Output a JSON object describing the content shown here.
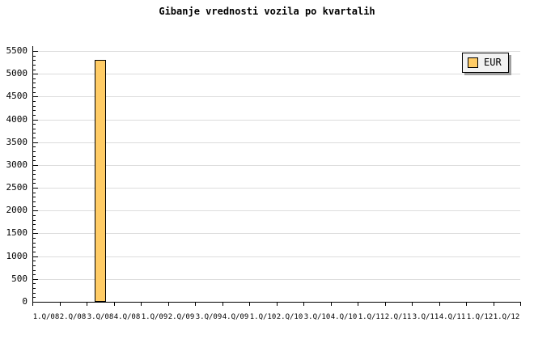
{
  "chart_data": {
    "type": "bar",
    "title": "Gibanje vrednosti vozila po kvartalih",
    "categories": [
      "1.Q/08",
      "2.Q/08",
      "3.Q/08",
      "4.Q/08",
      "1.Q/09",
      "2.Q/09",
      "3.Q/09",
      "4.Q/09",
      "1.Q/10",
      "2.Q/10",
      "3.Q/10",
      "4.Q/10",
      "1.Q/11",
      "2.Q/11",
      "3.Q/11",
      "4.Q/11",
      "1.Q/12",
      "1.Q/12"
    ],
    "series": [
      {
        "name": "EUR",
        "values": [
          null,
          null,
          5300,
          null,
          null,
          null,
          null,
          null,
          null,
          null,
          null,
          null,
          null,
          null,
          null,
          null,
          null,
          null
        ]
      }
    ],
    "xlabel": "",
    "ylabel": "",
    "ylim": [
      0,
      5500
    ],
    "ytick_major": 500,
    "ytick_minor": 100,
    "yticks": [
      0,
      500,
      1000,
      1500,
      2000,
      2500,
      3000,
      3500,
      4000,
      4500,
      5000,
      5500
    ],
    "grid": "horizontal-major",
    "legend": {
      "label": "EUR",
      "position": "top-right"
    },
    "colors": {
      "bar_fill": "#FFCC66",
      "bar_border": "#000000",
      "grid": "#DCDCDC",
      "axis": "#000000",
      "text": "#000000",
      "legend_bg": "#F2F2F2",
      "legend_shadow": "#A0A0A0",
      "background": "#FFFFFF"
    }
  }
}
